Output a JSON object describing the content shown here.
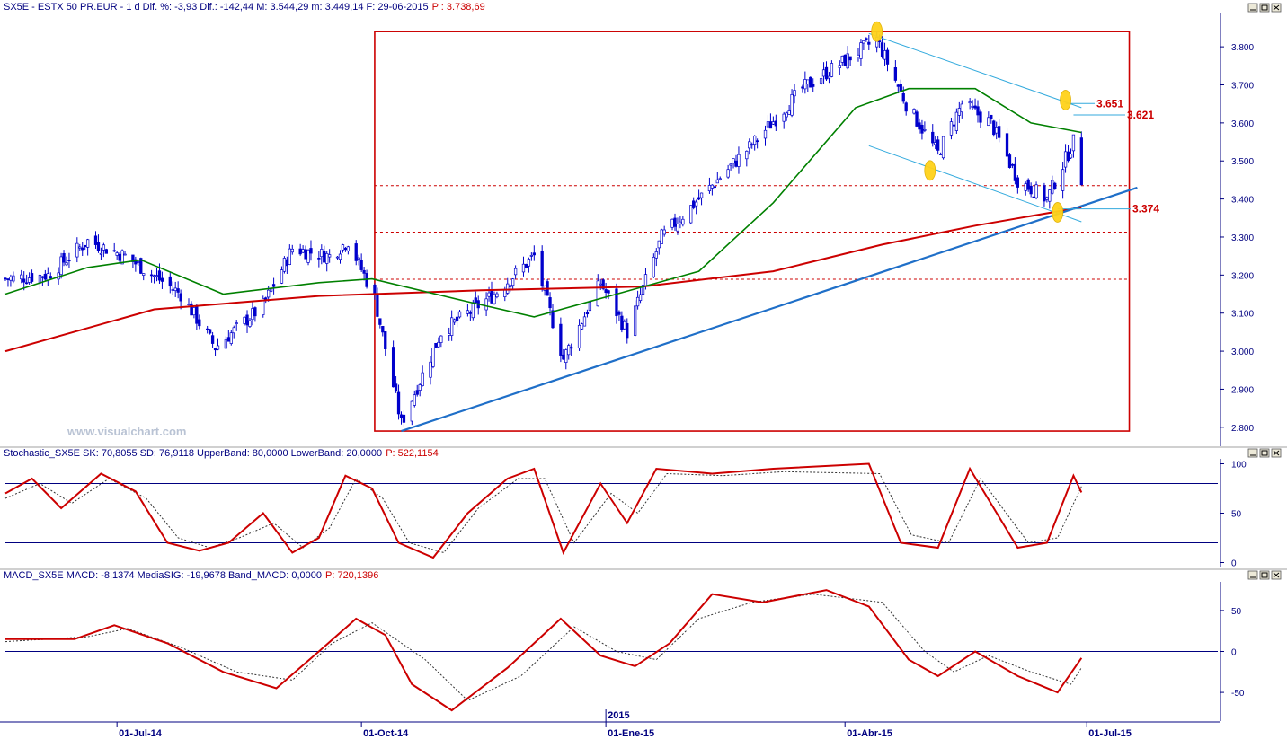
{
  "chart_data": [
    {
      "type": "candlestick",
      "title": "SX5E - ESTX 50 PR.EUR - 1 d Dif. %: -3,93 Dif.: -142,44 M: 3.544,29 m: 3.449,14 F: 29-06-2015",
      "price_label": "P : 3.738,69",
      "y_ticks": [
        "3.800",
        "3.700",
        "3.600",
        "3.500",
        "3.400",
        "3.300",
        "3.200",
        "3.100",
        "3.000",
        "2.900",
        "2.800"
      ],
      "ylim": [
        2750,
        3890
      ],
      "x_labels": [
        "01-Jul-14",
        "01-Oct-14",
        "2015",
        "01-Ene-15",
        "01-Abr-15",
        "01-Jul-15"
      ],
      "annotations": [
        "3.651",
        "3.621",
        "3.374"
      ],
      "watermark": "www.visualchart.com",
      "close_series": [
        {
          "date": "2014-05-20",
          "value": 3190
        },
        {
          "date": "2014-06-05",
          "value": 3200
        },
        {
          "date": "2014-06-20",
          "value": 3290
        },
        {
          "date": "2014-07-04",
          "value": 3250
        },
        {
          "date": "2014-07-25",
          "value": 3150
        },
        {
          "date": "2014-08-07",
          "value": 3010
        },
        {
          "date": "2014-08-25",
          "value": 3120
        },
        {
          "date": "2014-09-05",
          "value": 3270
        },
        {
          "date": "2014-09-19",
          "value": 3250
        },
        {
          "date": "2014-09-26",
          "value": 3290
        },
        {
          "date": "2014-10-06",
          "value": 3140
        },
        {
          "date": "2014-10-16",
          "value": 2810
        },
        {
          "date": "2014-10-31",
          "value": 3050
        },
        {
          "date": "2014-11-20",
          "value": 3150
        },
        {
          "date": "2014-12-05",
          "value": 3250
        },
        {
          "date": "2014-12-16",
          "value": 2980
        },
        {
          "date": "2014-12-30",
          "value": 3180
        },
        {
          "date": "2015-01-09",
          "value": 3050
        },
        {
          "date": "2015-01-22",
          "value": 3300
        },
        {
          "date": "2015-02-05",
          "value": 3400
        },
        {
          "date": "2015-02-26",
          "value": 3550
        },
        {
          "date": "2015-03-16",
          "value": 3690
        },
        {
          "date": "2015-04-13",
          "value": 3820
        },
        {
          "date": "2015-04-24",
          "value": 3650
        },
        {
          "date": "2015-05-06",
          "value": 3520
        },
        {
          "date": "2015-05-15",
          "value": 3650
        },
        {
          "date": "2015-05-26",
          "value": 3600
        },
        {
          "date": "2015-06-05",
          "value": 3450
        },
        {
          "date": "2015-06-16",
          "value": 3400
        },
        {
          "date": "2015-06-26",
          "value": 3550
        },
        {
          "date": "2015-06-29",
          "value": 3450
        }
      ],
      "sma_short": [
        {
          "date": "2014-05-20",
          "value": 3150
        },
        {
          "date": "2014-06-20",
          "value": 3220
        },
        {
          "date": "2014-07-10",
          "value": 3240
        },
        {
          "date": "2014-08-10",
          "value": 3150
        },
        {
          "date": "2014-09-15",
          "value": 3180
        },
        {
          "date": "2014-10-05",
          "value": 3190
        },
        {
          "date": "2014-11-10",
          "value": 3130
        },
        {
          "date": "2014-12-05",
          "value": 3090
        },
        {
          "date": "2015-01-05",
          "value": 3150
        },
        {
          "date": "2015-02-05",
          "value": 3210
        },
        {
          "date": "2015-03-05",
          "value": 3390
        },
        {
          "date": "2015-04-05",
          "value": 3640
        },
        {
          "date": "2015-04-25",
          "value": 3690
        },
        {
          "date": "2015-05-20",
          "value": 3690
        },
        {
          "date": "2015-06-10",
          "value": 3600
        },
        {
          "date": "2015-06-29",
          "value": 3575
        }
      ],
      "sma_long": [
        {
          "date": "2014-05-20",
          "value": 3000
        },
        {
          "date": "2014-07-15",
          "value": 3110
        },
        {
          "date": "2014-09-15",
          "value": 3145
        },
        {
          "date": "2014-11-15",
          "value": 3160
        },
        {
          "date": "2015-01-15",
          "value": 3170
        },
        {
          "date": "2015-03-05",
          "value": 3210
        },
        {
          "date": "2015-04-15",
          "value": 3280
        },
        {
          "date": "2015-05-20",
          "value": 3330
        },
        {
          "date": "2015-06-29",
          "value": 3378
        }
      ],
      "support_line": [
        {
          "date": "2014-10-16",
          "value": 2790
        },
        {
          "date": "2015-07-20",
          "value": 3430
        }
      ],
      "upper_channel": [
        {
          "date": "2015-04-10",
          "value": 3835
        },
        {
          "date": "2015-06-29",
          "value": 3640
        }
      ],
      "lower_channel": [
        {
          "date": "2015-04-10",
          "value": 3540
        },
        {
          "date": "2015-06-29",
          "value": 3340
        }
      ],
      "box": {
        "x0": "2014-10-06",
        "x1": "2015-07-17",
        "y0": 2790,
        "y1": 3840
      },
      "hlines": [
        3435,
        3313,
        3189
      ],
      "markers": [
        {
          "date": "2015-04-13",
          "value": 3840
        },
        {
          "date": "2015-06-23",
          "value": 3660
        },
        {
          "date": "2015-05-03",
          "value": 3475
        },
        {
          "date": "2015-06-20",
          "value": 3365
        }
      ]
    },
    {
      "type": "line",
      "title": "Stochastic_SX5E SK: 70,8055 SD: 76,9118 UpperBand: 80,0000 LowerBand: 20,0000",
      "price_label": "P: 522,1154",
      "y_ticks": [
        "100",
        "50",
        "0"
      ],
      "ylim": [
        -5,
        105
      ],
      "bands": [
        80,
        20
      ],
      "series_sk": [
        {
          "date": "2014-05-20",
          "value": 70
        },
        {
          "date": "2014-05-30",
          "value": 85
        },
        {
          "date": "2014-06-10",
          "value": 55
        },
        {
          "date": "2014-06-25",
          "value": 90
        },
        {
          "date": "2014-07-08",
          "value": 72
        },
        {
          "date": "2014-07-20",
          "value": 20
        },
        {
          "date": "2014-08-01",
          "value": 12
        },
        {
          "date": "2014-08-12",
          "value": 20
        },
        {
          "date": "2014-08-25",
          "value": 50
        },
        {
          "date": "2014-09-05",
          "value": 10
        },
        {
          "date": "2014-09-15",
          "value": 25
        },
        {
          "date": "2014-09-25",
          "value": 88
        },
        {
          "date": "2014-10-05",
          "value": 75
        },
        {
          "date": "2014-10-15",
          "value": 20
        },
        {
          "date": "2014-10-28",
          "value": 5
        },
        {
          "date": "2014-11-10",
          "value": 50
        },
        {
          "date": "2014-11-25",
          "value": 85
        },
        {
          "date": "2014-12-05",
          "value": 95
        },
        {
          "date": "2014-12-16",
          "value": 10
        },
        {
          "date": "2014-12-30",
          "value": 80
        },
        {
          "date": "2015-01-09",
          "value": 40
        },
        {
          "date": "2015-01-20",
          "value": 95
        },
        {
          "date": "2015-02-10",
          "value": 90
        },
        {
          "date": "2015-03-05",
          "value": 95
        },
        {
          "date": "2015-04-10",
          "value": 100
        },
        {
          "date": "2015-04-22",
          "value": 20
        },
        {
          "date": "2015-05-06",
          "value": 15
        },
        {
          "date": "2015-05-18",
          "value": 95
        },
        {
          "date": "2015-06-05",
          "value": 15
        },
        {
          "date": "2015-06-16",
          "value": 20
        },
        {
          "date": "2015-06-26",
          "value": 88
        },
        {
          "date": "2015-06-29",
          "value": 71
        }
      ],
      "series_sd": [
        {
          "date": "2014-05-20",
          "value": 65
        },
        {
          "date": "2014-06-02",
          "value": 80
        },
        {
          "date": "2014-06-14",
          "value": 60
        },
        {
          "date": "2014-06-28",
          "value": 85
        },
        {
          "date": "2014-07-12",
          "value": 65
        },
        {
          "date": "2014-07-24",
          "value": 25
        },
        {
          "date": "2014-08-05",
          "value": 15
        },
        {
          "date": "2014-08-16",
          "value": 25
        },
        {
          "date": "2014-08-29",
          "value": 40
        },
        {
          "date": "2014-09-09",
          "value": 15
        },
        {
          "date": "2014-09-19",
          "value": 35
        },
        {
          "date": "2014-09-29",
          "value": 85
        },
        {
          "date": "2014-10-09",
          "value": 65
        },
        {
          "date": "2014-10-19",
          "value": 20
        },
        {
          "date": "2014-11-01",
          "value": 10
        },
        {
          "date": "2014-11-14",
          "value": 55
        },
        {
          "date": "2014-11-29",
          "value": 85
        },
        {
          "date": "2014-12-09",
          "value": 85
        },
        {
          "date": "2014-12-20",
          "value": 20
        },
        {
          "date": "2015-01-03",
          "value": 70
        },
        {
          "date": "2015-01-13",
          "value": 50
        },
        {
          "date": "2015-01-24",
          "value": 90
        },
        {
          "date": "2015-02-14",
          "value": 88
        },
        {
          "date": "2015-03-09",
          "value": 92
        },
        {
          "date": "2015-04-14",
          "value": 90
        },
        {
          "date": "2015-04-26",
          "value": 28
        },
        {
          "date": "2015-05-10",
          "value": 20
        },
        {
          "date": "2015-05-22",
          "value": 85
        },
        {
          "date": "2015-06-09",
          "value": 20
        },
        {
          "date": "2015-06-20",
          "value": 25
        },
        {
          "date": "2015-06-29",
          "value": 77
        }
      ]
    },
    {
      "type": "line",
      "title": "MACD_SX5E MACD: -8,1374 MediaSIG: -19,9678 Band_MACD: 0,0000",
      "price_label": "P: 720,1396",
      "y_ticks": [
        "50",
        "0",
        "-50"
      ],
      "ylim": [
        -85,
        85
      ],
      "band": 0,
      "series_macd": [
        {
          "date": "2014-05-20",
          "value": 15
        },
        {
          "date": "2014-06-15",
          "value": 15
        },
        {
          "date": "2014-06-30",
          "value": 32
        },
        {
          "date": "2014-07-20",
          "value": 10
        },
        {
          "date": "2014-08-10",
          "value": -25
        },
        {
          "date": "2014-08-30",
          "value": -45
        },
        {
          "date": "2014-09-15",
          "value": 0
        },
        {
          "date": "2014-09-29",
          "value": 40
        },
        {
          "date": "2014-10-10",
          "value": 20
        },
        {
          "date": "2014-10-20",
          "value": -40
        },
        {
          "date": "2014-11-04",
          "value": -72
        },
        {
          "date": "2014-11-25",
          "value": -20
        },
        {
          "date": "2014-12-15",
          "value": 40
        },
        {
          "date": "2014-12-30",
          "value": -5
        },
        {
          "date": "2015-01-12",
          "value": -18
        },
        {
          "date": "2015-01-25",
          "value": 10
        },
        {
          "date": "2015-02-10",
          "value": 70
        },
        {
          "date": "2015-03-01",
          "value": 60
        },
        {
          "date": "2015-03-25",
          "value": 75
        },
        {
          "date": "2015-04-10",
          "value": 55
        },
        {
          "date": "2015-04-25",
          "value": -10
        },
        {
          "date": "2015-05-06",
          "value": -30
        },
        {
          "date": "2015-05-20",
          "value": 0
        },
        {
          "date": "2015-06-05",
          "value": -30
        },
        {
          "date": "2015-06-20",
          "value": -50
        },
        {
          "date": "2015-06-29",
          "value": -8
        }
      ],
      "series_signal": [
        {
          "date": "2014-05-20",
          "value": 12
        },
        {
          "date": "2014-06-20",
          "value": 18
        },
        {
          "date": "2014-07-05",
          "value": 28
        },
        {
          "date": "2014-07-25",
          "value": 5
        },
        {
          "date": "2014-08-15",
          "value": -25
        },
        {
          "date": "2014-09-05",
          "value": -35
        },
        {
          "date": "2014-09-20",
          "value": 10
        },
        {
          "date": "2014-10-05",
          "value": 35
        },
        {
          "date": "2014-10-25",
          "value": -10
        },
        {
          "date": "2014-11-10",
          "value": -60
        },
        {
          "date": "2014-11-30",
          "value": -30
        },
        {
          "date": "2014-12-20",
          "value": 30
        },
        {
          "date": "2015-01-05",
          "value": 0
        },
        {
          "date": "2015-01-20",
          "value": -10
        },
        {
          "date": "2015-02-05",
          "value": 40
        },
        {
          "date": "2015-02-25",
          "value": 60
        },
        {
          "date": "2015-03-20",
          "value": 70
        },
        {
          "date": "2015-04-15",
          "value": 60
        },
        {
          "date": "2015-05-01",
          "value": 0
        },
        {
          "date": "2015-05-12",
          "value": -25
        },
        {
          "date": "2015-05-25",
          "value": -5
        },
        {
          "date": "2015-06-10",
          "value": -25
        },
        {
          "date": "2015-06-25",
          "value": -40
        },
        {
          "date": "2015-06-29",
          "value": -20
        }
      ]
    }
  ]
}
